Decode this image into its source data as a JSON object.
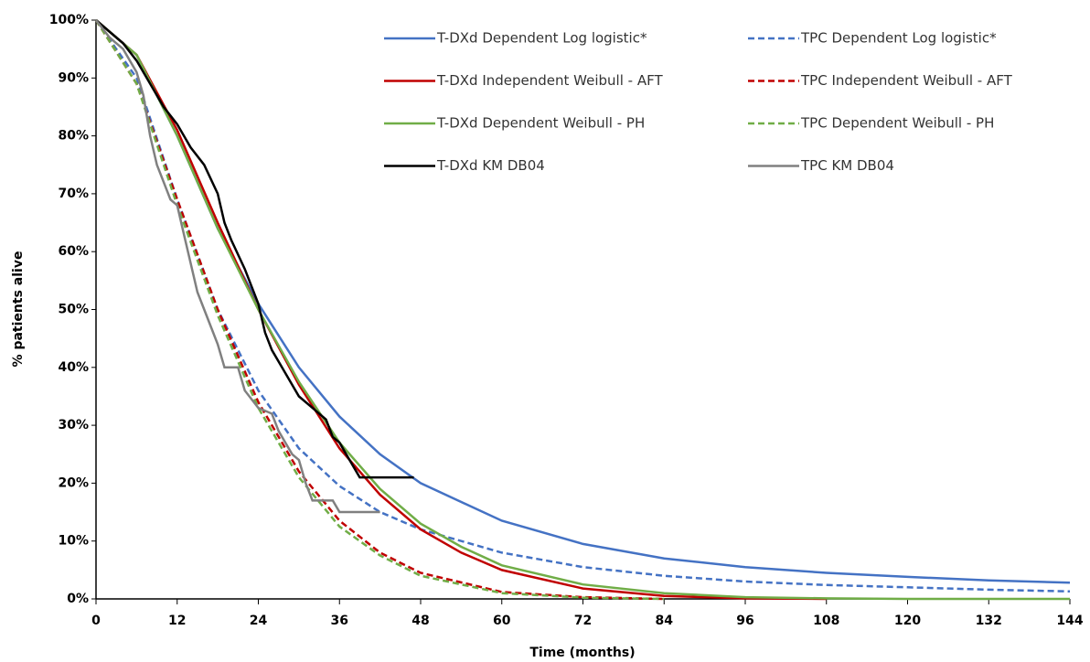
{
  "chart_data": {
    "type": "line",
    "x_label": "Time (months)",
    "y_label": "% patients alive",
    "xlim": [
      0,
      144
    ],
    "xticks": [
      0,
      12,
      24,
      36,
      48,
      60,
      72,
      84,
      96,
      108,
      120,
      132,
      144
    ],
    "ylim": [
      0,
      100
    ],
    "yticks": [
      {
        "value": 0,
        "label": "0%"
      },
      {
        "value": 10,
        "label": "10%"
      },
      {
        "value": 20,
        "label": "20%"
      },
      {
        "value": 30,
        "label": "30%"
      },
      {
        "value": 40,
        "label": "40%"
      },
      {
        "value": 50,
        "label": "50%"
      },
      {
        "value": 60,
        "label": "60%"
      },
      {
        "value": 70,
        "label": "70%"
      },
      {
        "value": 80,
        "label": "80%"
      },
      {
        "value": 90,
        "label": "90%"
      },
      {
        "value": 100,
        "label": "100%"
      }
    ],
    "grid": false,
    "series": [
      {
        "name": "T-DXd Dependent Log logistic*",
        "color": "#4472c4",
        "dashed": false,
        "x": [
          0,
          6,
          12,
          18,
          24,
          30,
          36,
          42,
          48,
          60,
          72,
          84,
          96,
          108,
          120,
          132,
          144
        ],
        "values": [
          100,
          94,
          80,
          64,
          51,
          40,
          31.5,
          25,
          20,
          13.5,
          9.5,
          7,
          5.5,
          4.5,
          3.8,
          3.2,
          2.8
        ]
      },
      {
        "name": "TPC Dependent Log logistic*",
        "color": "#4472c4",
        "dashed": true,
        "x": [
          0,
          6,
          12,
          18,
          24,
          30,
          36,
          42,
          48,
          60,
          72,
          84,
          96,
          108,
          120,
          132,
          144
        ],
        "values": [
          100,
          90,
          69,
          50,
          36,
          26,
          19.5,
          15,
          12,
          8,
          5.5,
          4,
          3,
          2.4,
          2,
          1.6,
          1.3
        ]
      },
      {
        "name": "T-DXd Independent Weibull - AFT",
        "color": "#c00000",
        "dashed": false,
        "x": [
          0,
          6,
          12,
          18,
          24,
          30,
          36,
          42,
          48,
          54,
          60,
          72,
          84,
          96,
          108
        ],
        "values": [
          100,
          94,
          81,
          65,
          50,
          37,
          26,
          18,
          12,
          8,
          5,
          1.8,
          0.5,
          0.1,
          0
        ]
      },
      {
        "name": "TPC Independent Weibull - AFT",
        "color": "#c00000",
        "dashed": true,
        "x": [
          0,
          6,
          12,
          18,
          24,
          30,
          36,
          42,
          48,
          60,
          72,
          84
        ],
        "values": [
          100,
          89,
          69,
          50,
          34,
          22,
          13.5,
          8,
          4.5,
          1.2,
          0.3,
          0
        ]
      },
      {
        "name": "T-DXd Dependent Weibull - PH",
        "color": "#70ad47",
        "dashed": false,
        "x": [
          0,
          6,
          12,
          18,
          24,
          30,
          36,
          42,
          48,
          54,
          60,
          72,
          84,
          96,
          108,
          120,
          144
        ],
        "values": [
          100,
          94,
          80,
          64,
          50,
          37.5,
          27,
          19,
          13,
          9,
          5.8,
          2.5,
          1,
          0.3,
          0.1,
          0,
          0
        ]
      },
      {
        "name": "TPC Dependent Weibull - PH",
        "color": "#70ad47",
        "dashed": true,
        "x": [
          0,
          6,
          12,
          18,
          24,
          30,
          36,
          42,
          48,
          60,
          72,
          84
        ],
        "values": [
          100,
          89,
          68,
          49,
          33,
          21,
          12.5,
          7.5,
          4,
          1,
          0.2,
          0
        ]
      },
      {
        "name": "T-DXd KM DB04",
        "color": "#000000",
        "dashed": false,
        "x": [
          0,
          2,
          4,
          6,
          8,
          10,
          12,
          14,
          16,
          18,
          19,
          20,
          22,
          24,
          25,
          26,
          28,
          30,
          32,
          34,
          35,
          36,
          37,
          39,
          47
        ],
        "values": [
          100,
          98,
          96,
          93,
          89,
          85,
          82,
          78,
          75,
          70,
          65,
          62,
          57,
          51,
          46,
          43,
          39,
          35,
          33,
          31,
          28,
          27,
          25,
          21,
          21
        ]
      },
      {
        "name": "TPC KM DB04",
        "color": "#808080",
        "dashed": false,
        "x": [
          0,
          2,
          4,
          6,
          7,
          8,
          9,
          10,
          11,
          12,
          13,
          14,
          15,
          16,
          17,
          18,
          19,
          21,
          22,
          24,
          26,
          27,
          28,
          29,
          30,
          31,
          32,
          35,
          36,
          42
        ],
        "values": [
          100,
          97,
          95,
          91,
          87,
          80,
          75,
          72,
          69,
          68,
          63,
          58,
          53,
          50,
          47,
          44,
          40,
          40,
          36,
          33,
          32,
          29,
          27,
          25,
          24,
          20,
          17,
          17,
          15,
          15
        ]
      }
    ]
  }
}
